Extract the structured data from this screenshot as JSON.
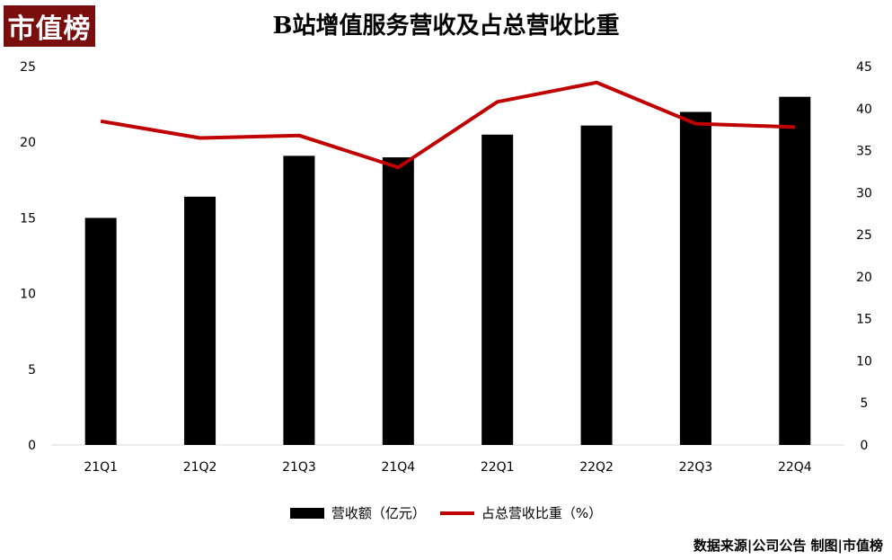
{
  "logo_text": "市值榜",
  "footer_text": "数据来源|公司公告 制图|市值榜",
  "chart_data": {
    "type": "bar",
    "title": "B站增值服务营收及占总营收比重",
    "categories": [
      "21Q1",
      "21Q2",
      "21Q3",
      "21Q4",
      "22Q1",
      "22Q2",
      "22Q3",
      "22Q4"
    ],
    "series": [
      {
        "name": "营收额（亿元）",
        "type": "bar",
        "axis": "left",
        "color": "#000000",
        "values": [
          15.0,
          16.4,
          19.1,
          19.0,
          20.5,
          21.1,
          22.0,
          23.0
        ]
      },
      {
        "name": "占总营收比重（%）",
        "type": "line",
        "axis": "right",
        "color": "#c00000",
        "values": [
          38.5,
          36.5,
          36.8,
          33.0,
          40.8,
          43.1,
          38.2,
          37.8
        ]
      }
    ],
    "ylim_left": [
      0,
      25
    ],
    "yticks_left": [
      0,
      5,
      10,
      15,
      20,
      25
    ],
    "ylim_right": [
      0,
      45
    ],
    "yticks_right": [
      0,
      5,
      10,
      15,
      20,
      25,
      30,
      35,
      40,
      45
    ],
    "grid": false,
    "legend_position": "bottom"
  }
}
